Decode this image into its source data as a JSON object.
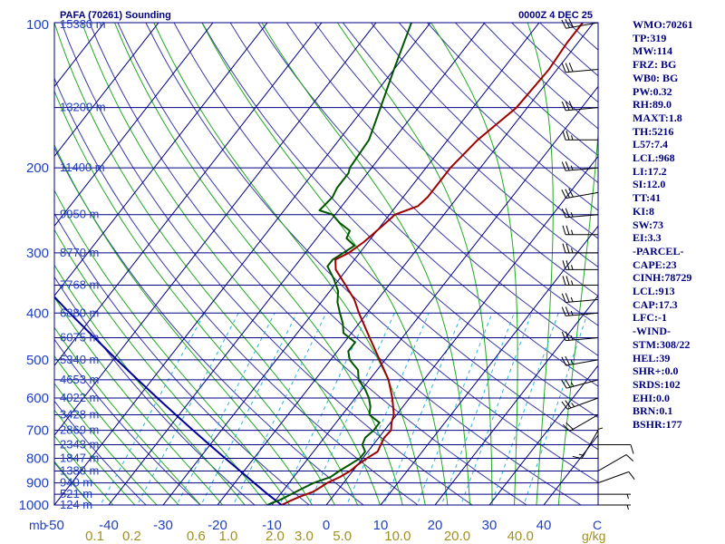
{
  "header": {
    "station": "PAFA (70261) Sounding",
    "time": "0000Z  4 DEC 25"
  },
  "colors": {
    "background": "#ffffff",
    "frame": "#000080",
    "isobar": "#000080",
    "dry_adiabat": "#3a3aa8",
    "moist_adiabat": "#22aa22",
    "mixing_ratio": "#2bb3dd",
    "temperature": "#a00000",
    "dewpoint": "#005500",
    "parcel": "#00009a",
    "wind_barb": "#000000",
    "axis_text": "#2040c0",
    "mixing_ratio_text": "#a09020",
    "stats_text": "#000080"
  },
  "stats": [
    "WMO:70261",
    "TP:319",
    "MW:114",
    "FRZ: BG",
    "WB0: BG",
    "PW:0.32",
    "RH:89.0",
    "MAXT:1.8",
    "TH:5216",
    "L57:7.4",
    "LCL:968",
    "LI:17.2",
    "SI:12.0",
    "TT:41",
    "KI:8",
    "SW:73",
    "EI:3.3",
    "-PARCEL-",
    "CAPE:23",
    "CINH:78729",
    "LCL:913",
    "CAP:17.3",
    "LFC:-1",
    "-WIND-",
    "STM:308/22",
    "HEL:39",
    "SHR+:0.0",
    "SRDS:102",
    "EHI:0.0",
    "BRN:0.1",
    "BSHR:177"
  ],
  "chart_data": {
    "type": "skew-t log-p sounding",
    "title": "PAFA (70261) Sounding",
    "valid_time": "0000Z  4 DEC 25",
    "pressure_unit": "mb",
    "temperature_unit": "C",
    "mixing_ratio_unit": "g/kg",
    "pressure_range": [
      1000,
      100
    ],
    "temperature_range": [
      -50,
      50
    ],
    "pressure_ticks": [
      "100",
      "200",
      "300",
      "400",
      "500",
      "600",
      "700",
      "800",
      "900",
      "1000"
    ],
    "temperature_ticks": [
      "-50",
      "-40",
      "-30",
      "-20",
      "-10",
      "0",
      "10",
      "20",
      "30",
      "40"
    ],
    "temperature_tick_values": [
      -50,
      -40,
      -30,
      -20,
      -10,
      0,
      10,
      20,
      30,
      40
    ],
    "axis_label_left": "mb",
    "axis_label_right": "C",
    "mixing_ratio_labels": [
      "0.1",
      "0.2",
      "0.6",
      "1.0",
      "2.0",
      "3.0",
      "5.0",
      "10.0",
      "20.0",
      "40.0"
    ],
    "mixing_ratio_values": [
      0.1,
      0.2,
      0.6,
      1.0,
      2.0,
      3.0,
      5.0,
      10.0,
      20.0,
      40.0
    ],
    "mixing_ratio_unit_label": "g/kg",
    "height_labels": [
      {
        "p": 100,
        "text": "15380 m"
      },
      {
        "p": 150,
        "text": "13200 m"
      },
      {
        "p": 200,
        "text": "11400 m"
      },
      {
        "p": 250,
        "text": "9950 m"
      },
      {
        "p": 300,
        "text": "8770 m"
      },
      {
        "p": 350,
        "text": "7768 m"
      },
      {
        "p": 400,
        "text": "6880 m"
      },
      {
        "p": 450,
        "text": "6075 m"
      },
      {
        "p": 500,
        "text": "5340 m"
      },
      {
        "p": 550,
        "text": "4653 m"
      },
      {
        "p": 600,
        "text": "4022 m"
      },
      {
        "p": 650,
        "text": "3428 m"
      },
      {
        "p": 700,
        "text": "2869 m"
      },
      {
        "p": 750,
        "text": "2343 m"
      },
      {
        "p": 800,
        "text": "1847 m"
      },
      {
        "p": 850,
        "text": "1380 m"
      },
      {
        "p": 900,
        "text": "940 m"
      },
      {
        "p": 950,
        "text": "521 m"
      },
      {
        "p": 1000,
        "text": "124 m"
      }
    ],
    "temperature_profile": [
      {
        "p": 1000,
        "t": -8.2
      },
      {
        "p": 980,
        "t": -7.2
      },
      {
        "p": 960,
        "t": -6.0
      },
      {
        "p": 940,
        "t": -4.4
      },
      {
        "p": 925,
        "t": -3.8
      },
      {
        "p": 900,
        "t": -3.0
      },
      {
        "p": 875,
        "t": -1.5
      },
      {
        "p": 850,
        "t": -0.5
      },
      {
        "p": 825,
        "t": 0.0
      },
      {
        "p": 800,
        "t": 0.8
      },
      {
        "p": 775,
        "t": 1.8
      },
      {
        "p": 750,
        "t": 1.4
      },
      {
        "p": 725,
        "t": 1.0
      },
      {
        "p": 700,
        "t": 1.2
      },
      {
        "p": 675,
        "t": 0.2
      },
      {
        "p": 650,
        "t": -0.5
      },
      {
        "p": 600,
        "t": -3.2
      },
      {
        "p": 550,
        "t": -6.5
      },
      {
        "p": 500,
        "t": -11.0
      },
      {
        "p": 450,
        "t": -16.0
      },
      {
        "p": 400,
        "t": -21.5
      },
      {
        "p": 375,
        "t": -24.3
      },
      {
        "p": 350,
        "t": -28.0
      },
      {
        "p": 325,
        "t": -32.0
      },
      {
        "p": 310,
        "t": -33.5
      },
      {
        "p": 300,
        "t": -32.0
      },
      {
        "p": 285,
        "t": -30.8
      },
      {
        "p": 260,
        "t": -29.5
      },
      {
        "p": 250,
        "t": -29.0
      },
      {
        "p": 245,
        "t": -27.5
      },
      {
        "p": 240,
        "t": -26.0
      },
      {
        "p": 230,
        "t": -25.5
      },
      {
        "p": 200,
        "t": -25.5
      },
      {
        "p": 175,
        "t": -24.5
      },
      {
        "p": 150,
        "t": -22.0
      },
      {
        "p": 125,
        "t": -21.5
      },
      {
        "p": 110,
        "t": -22.0
      },
      {
        "p": 100,
        "t": -22.0
      }
    ],
    "dewpoint_profile": [
      {
        "p": 1000,
        "t": -10.8
      },
      {
        "p": 990,
        "t": -10.3
      },
      {
        "p": 975,
        "t": -9.2
      },
      {
        "p": 950,
        "t": -8.0
      },
      {
        "p": 925,
        "t": -6.8
      },
      {
        "p": 900,
        "t": -5.5
      },
      {
        "p": 875,
        "t": -3.2
      },
      {
        "p": 850,
        "t": -2.5
      },
      {
        "p": 825,
        "t": -1.5
      },
      {
        "p": 800,
        "t": -0.5
      },
      {
        "p": 775,
        "t": -0.5
      },
      {
        "p": 750,
        "t": -2.0
      },
      {
        "p": 725,
        "t": -2.5
      },
      {
        "p": 700,
        "t": -2.0
      },
      {
        "p": 675,
        "t": -2.0
      },
      {
        "p": 650,
        "t": -5.0
      },
      {
        "p": 625,
        "t": -6.0
      },
      {
        "p": 600,
        "t": -7.5
      },
      {
        "p": 575,
        "t": -9.5
      },
      {
        "p": 550,
        "t": -12.0
      },
      {
        "p": 525,
        "t": -13.5
      },
      {
        "p": 500,
        "t": -16.5
      },
      {
        "p": 480,
        "t": -18.0
      },
      {
        "p": 460,
        "t": -18.0
      },
      {
        "p": 440,
        "t": -21.5
      },
      {
        "p": 420,
        "t": -23.0
      },
      {
        "p": 400,
        "t": -25.0
      },
      {
        "p": 380,
        "t": -27.0
      },
      {
        "p": 360,
        "t": -28.5
      },
      {
        "p": 340,
        "t": -31.0
      },
      {
        "p": 320,
        "t": -34.0
      },
      {
        "p": 310,
        "t": -34.0
      },
      {
        "p": 300,
        "t": -33.0
      },
      {
        "p": 290,
        "t": -32.0
      },
      {
        "p": 280,
        "t": -34.5
      },
      {
        "p": 270,
        "t": -35.0
      },
      {
        "p": 260,
        "t": -38.0
      },
      {
        "p": 250,
        "t": -40.5
      },
      {
        "p": 245,
        "t": -43.5
      },
      {
        "p": 230,
        "t": -43.0
      },
      {
        "p": 220,
        "t": -43.5
      },
      {
        "p": 205,
        "t": -43.5
      },
      {
        "p": 200,
        "t": -44.0
      },
      {
        "p": 175,
        "t": -44.5
      },
      {
        "p": 150,
        "t": -47.0
      },
      {
        "p": 125,
        "t": -50.0
      },
      {
        "p": 100,
        "t": -53.5
      }
    ],
    "parcel_profile": [
      {
        "p": 1000,
        "t": -8.2
      },
      {
        "p": 950,
        "t": -12.3
      },
      {
        "p": 900,
        "t": -16.4
      },
      {
        "p": 850,
        "t": -20.7
      },
      {
        "p": 800,
        "t": -25.3
      },
      {
        "p": 750,
        "t": -30.1
      },
      {
        "p": 700,
        "t": -35.2
      },
      {
        "p": 650,
        "t": -40.6
      },
      {
        "p": 600,
        "t": -46.4
      },
      {
        "p": 550,
        "t": -52.6
      },
      {
        "p": 500,
        "t": -59.3
      },
      {
        "p": 450,
        "t": -66.6
      },
      {
        "p": 400,
        "t": -74.7
      },
      {
        "p": 350,
        "t": -83.6
      },
      {
        "p": 300,
        "t": -93.7
      },
      {
        "p": 250,
        "t": -105.5
      },
      {
        "p": 200,
        "t": -119.6
      },
      {
        "p": 150,
        "t": -137.4
      },
      {
        "p": 120,
        "t": -150.6
      }
    ],
    "wind_barbs": [
      {
        "p": 100,
        "dir": 260,
        "spd": 30
      },
      {
        "p": 125,
        "dir": 265,
        "spd": 30
      },
      {
        "p": 150,
        "dir": 265,
        "spd": 30
      },
      {
        "p": 175,
        "dir": 270,
        "spd": 25
      },
      {
        "p": 200,
        "dir": 265,
        "spd": 25
      },
      {
        "p": 225,
        "dir": 260,
        "spd": 30
      },
      {
        "p": 250,
        "dir": 265,
        "spd": 25
      },
      {
        "p": 275,
        "dir": 270,
        "spd": 25
      },
      {
        "p": 300,
        "dir": 270,
        "spd": 25
      },
      {
        "p": 325,
        "dir": 270,
        "spd": 25
      },
      {
        "p": 350,
        "dir": 270,
        "spd": 25
      },
      {
        "p": 375,
        "dir": 265,
        "spd": 25
      },
      {
        "p": 400,
        "dir": 265,
        "spd": 25
      },
      {
        "p": 450,
        "dir": 265,
        "spd": 25
      },
      {
        "p": 500,
        "dir": 260,
        "spd": 25
      },
      {
        "p": 550,
        "dir": 255,
        "spd": 25
      },
      {
        "p": 600,
        "dir": 250,
        "spd": 25
      },
      {
        "p": 650,
        "dir": 240,
        "spd": 20
      },
      {
        "p": 700,
        "dir": 210,
        "spd": 15
      },
      {
        "p": 750,
        "dir": 90,
        "spd": 10
      },
      {
        "p": 800,
        "dir": 0,
        "spd": 5
      },
      {
        "p": 850,
        "dir": 60,
        "spd": 10
      },
      {
        "p": 900,
        "dir": 70,
        "spd": 10
      },
      {
        "p": 950,
        "dir": 90,
        "spd": 5
      },
      {
        "p": 1000,
        "dir": 90,
        "spd": 5
      }
    ]
  }
}
